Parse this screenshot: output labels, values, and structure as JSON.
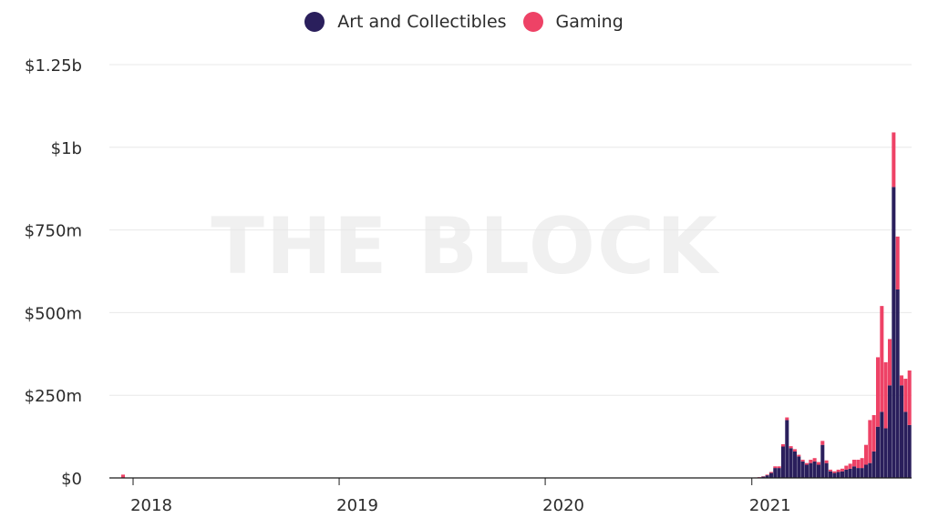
{
  "watermark": "THE BLOCK",
  "colors": {
    "art": "#2a1f5c",
    "gaming": "#ee4266",
    "grid": "#e8e8e8",
    "axis": "#1a1a1a"
  },
  "chart_data": {
    "type": "bar",
    "stacked": true,
    "legend": {
      "position": "top-center"
    },
    "grid": true,
    "ylim": [
      0,
      1250000000
    ],
    "yticks": [
      {
        "value": 0,
        "label": "$0"
      },
      {
        "value": 250000000,
        "label": "$250m"
      },
      {
        "value": 500000000,
        "label": "$500m"
      },
      {
        "value": 750000000,
        "label": "$750m"
      },
      {
        "value": 1000000000,
        "label": "$1b"
      },
      {
        "value": 1250000000,
        "label": "$1.25b"
      }
    ],
    "x_range": [
      "2017-11-20",
      "2021-10-11"
    ],
    "xticks": [
      {
        "value": "2018-01-01",
        "label": "2018"
      },
      {
        "value": "2019-01-01",
        "label": "2019"
      },
      {
        "value": "2020-01-01",
        "label": "2020"
      },
      {
        "value": "2021-01-01",
        "label": "2021"
      }
    ],
    "x": [
      "2021-01-04",
      "2021-01-11",
      "2021-01-18",
      "2021-01-25",
      "2021-02-01",
      "2021-02-08",
      "2021-02-15",
      "2021-02-22",
      "2021-03-01",
      "2021-03-08",
      "2021-03-15",
      "2021-03-22",
      "2021-03-29",
      "2021-04-05",
      "2021-04-12",
      "2021-04-19",
      "2021-04-26",
      "2021-05-03",
      "2021-05-10",
      "2021-05-17",
      "2021-05-24",
      "2021-05-31",
      "2021-06-07",
      "2021-06-14",
      "2021-06-21",
      "2021-06-28",
      "2021-07-05",
      "2021-07-12",
      "2021-07-19",
      "2021-07-26",
      "2021-08-02",
      "2021-08-09",
      "2021-08-16",
      "2021-08-23",
      "2021-08-30",
      "2021-09-06",
      "2021-09-13",
      "2021-09-20",
      "2021-09-27",
      "2021-10-04"
    ],
    "series": [
      {
        "name": "Art and Collectibles",
        "values": [
          1000000,
          2000000,
          4000000,
          8000000,
          15000000,
          30000000,
          30000000,
          95000000,
          175000000,
          90000000,
          80000000,
          65000000,
          50000000,
          40000000,
          45000000,
          50000000,
          40000000,
          100000000,
          45000000,
          20000000,
          15000000,
          18000000,
          20000000,
          25000000,
          28000000,
          35000000,
          30000000,
          30000000,
          40000000,
          45000000,
          80000000,
          155000000,
          200000000,
          150000000,
          280000000,
          880000000,
          570000000,
          280000000,
          200000000,
          160000000
        ]
      },
      {
        "name": "Gaming",
        "values": [
          500000,
          800000,
          1000000,
          2000000,
          3000000,
          5000000,
          5000000,
          7000000,
          8000000,
          6000000,
          7000000,
          5000000,
          5000000,
          5000000,
          10000000,
          10000000,
          8000000,
          12000000,
          8000000,
          5000000,
          5000000,
          7000000,
          8000000,
          12000000,
          15000000,
          20000000,
          25000000,
          30000000,
          60000000,
          130000000,
          110000000,
          210000000,
          320000000,
          200000000,
          140000000,
          165000000,
          160000000,
          30000000,
          100000000,
          165000000
        ]
      }
    ],
    "early_spike": {
      "date": "2017-12-11",
      "value": 10000000
    }
  }
}
